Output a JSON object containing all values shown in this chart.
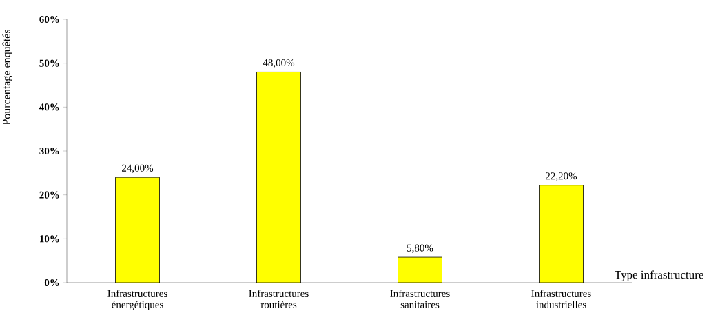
{
  "chart_data": {
    "type": "bar",
    "xlabel": "Type infrastructure",
    "ylabel": "Pourcentage enquêtés",
    "categories": [
      "Infrastructures énergétiques",
      "Infrastructures routières",
      "Infrastructures sanitaires",
      "Infrastructures industrielles"
    ],
    "values": [
      24,
      48,
      5.8,
      22.2
    ],
    "value_labels": [
      "24,00%",
      "48,00%",
      "5,80%",
      "22,20%"
    ],
    "color": "#ffff00",
    "ylim": [
      0,
      60
    ],
    "yticks": [
      {
        "value": 0,
        "label": "0%"
      },
      {
        "value": 10,
        "label": "10%"
      },
      {
        "value": 20,
        "label": "20%"
      },
      {
        "value": 30,
        "label": "30%"
      },
      {
        "value": 40,
        "label": "40%"
      },
      {
        "value": 50,
        "label": "50%"
      },
      {
        "value": 60,
        "label": "60%"
      }
    ],
    "grid": false
  }
}
